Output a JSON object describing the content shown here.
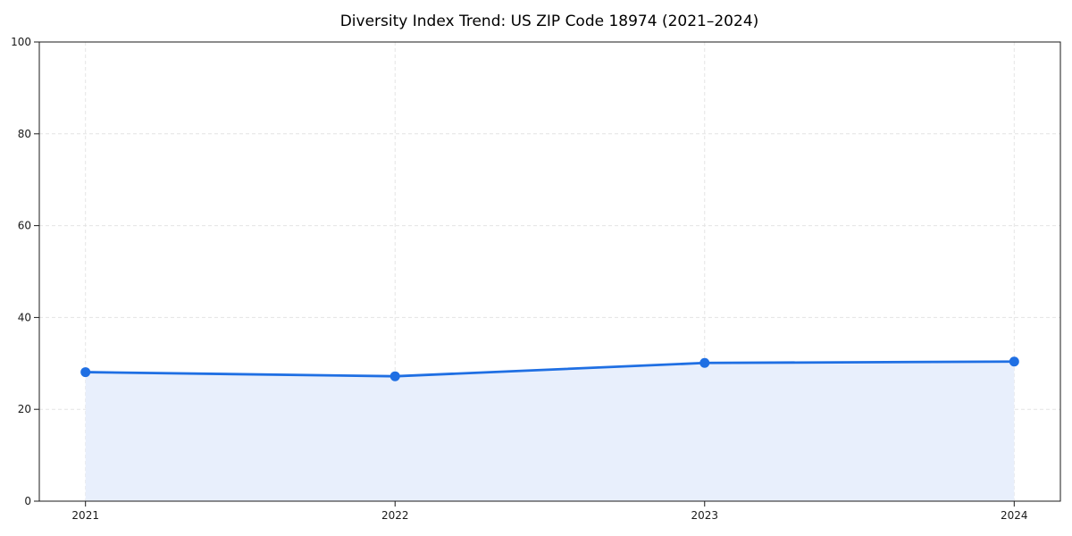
{
  "chart_data": {
    "type": "area",
    "title": "Diversity Index Trend: US ZIP Code 18974 (2021–2024)",
    "categories": [
      "2021",
      "2022",
      "2023",
      "2024"
    ],
    "values": [
      28.1,
      27.2,
      30.1,
      30.4
    ],
    "series_name": "Diversity Index",
    "xlabel": "",
    "ylabel": "",
    "ylim": [
      0,
      100
    ],
    "yticks": [
      0,
      20,
      40,
      60,
      80,
      100
    ],
    "grid": true,
    "grid_style": "dashed",
    "legend": "none",
    "marker": "circle",
    "colors": {
      "line": "#1f6fe3",
      "marker": "#1f6fe3",
      "area_fill": "#e8effc",
      "grid": "#e4e4e4",
      "axis": "#1a1a1a",
      "tick_label": "#1a1a1a",
      "title": "#000000",
      "background": "#ffffff"
    }
  }
}
